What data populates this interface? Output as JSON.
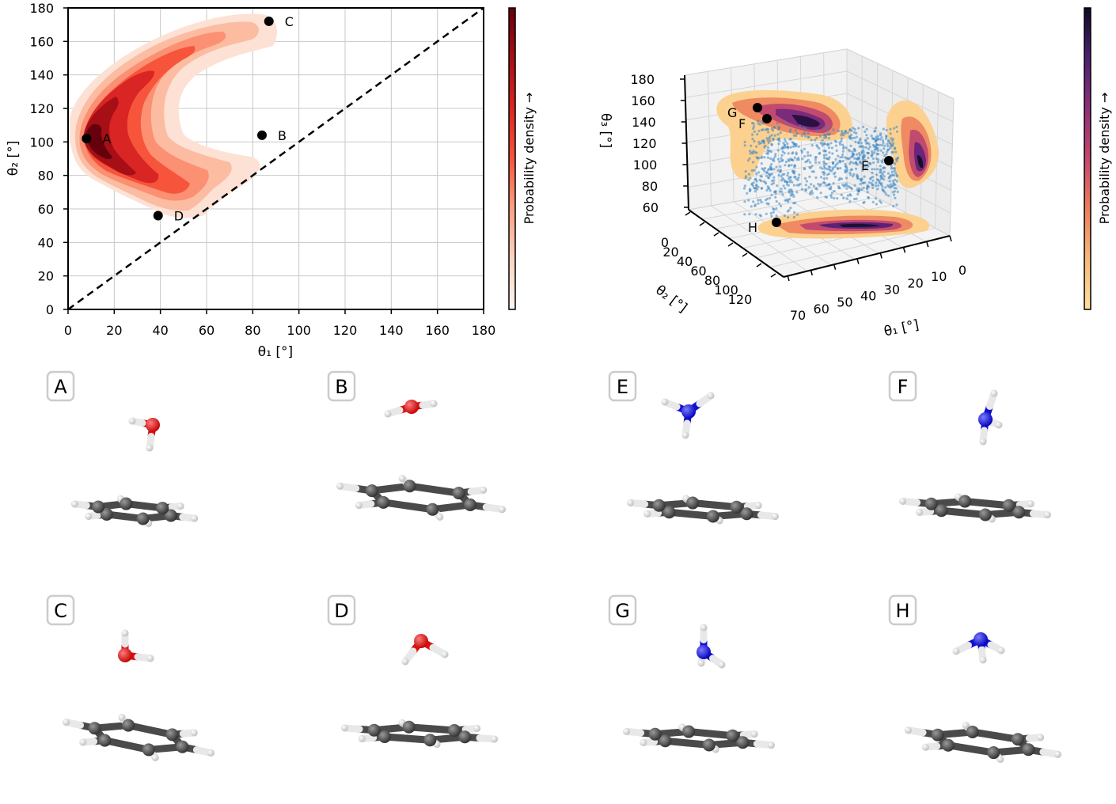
{
  "chart_data": [
    {
      "type": "contour-scatter",
      "title": "",
      "xlabel": "θ₁ [°]",
      "ylabel": "θ₂ [°]",
      "xlim": [
        0,
        180
      ],
      "ylim": [
        0,
        180
      ],
      "xticks": [
        0,
        20,
        40,
        60,
        80,
        100,
        120,
        140,
        160,
        180
      ],
      "yticks": [
        0,
        20,
        40,
        60,
        80,
        100,
        120,
        140,
        160,
        180
      ],
      "grid": true,
      "reference_line": {
        "style": "dashed",
        "from": [
          0,
          0
        ],
        "to": [
          180,
          180
        ]
      },
      "colorbar_label": "Probability density →",
      "colormap": "reds",
      "points": [
        {
          "label": "A",
          "x": 8,
          "y": 102
        },
        {
          "label": "B",
          "x": 84,
          "y": 104
        },
        {
          "label": "C",
          "x": 87,
          "y": 172
        },
        {
          "label": "D",
          "x": 39,
          "y": 56
        }
      ]
    },
    {
      "type": "scatter3d",
      "title": "",
      "xlabel": "θ₁ [°]",
      "ylabel": "θ₂ [°]",
      "zlabel": "θ₃ [°]",
      "xticks": [
        70,
        60,
        50,
        40,
        30,
        20,
        10,
        0
      ],
      "yticks": [
        0,
        20,
        40,
        60,
        80,
        100,
        120
      ],
      "zticks": [
        60,
        80,
        100,
        120,
        140,
        160,
        180
      ],
      "colorbar_label": "Probability density →",
      "colormap": "magma",
      "points": [
        {
          "label": "E"
        },
        {
          "label": "F"
        },
        {
          "label": "G"
        },
        {
          "label": "H"
        }
      ]
    }
  ],
  "molecules": {
    "top_row": [
      {
        "label": "A",
        "type": "water"
      },
      {
        "label": "B",
        "type": "water"
      },
      {
        "label": "E",
        "type": "ammonia"
      },
      {
        "label": "F",
        "type": "ammonia"
      }
    ],
    "bottom_row": [
      {
        "label": "C",
        "type": "water"
      },
      {
        "label": "D",
        "type": "water"
      },
      {
        "label": "G",
        "type": "ammonia"
      },
      {
        "label": "H",
        "type": "ammonia"
      }
    ]
  },
  "colors": {
    "oxygen": "#e01010",
    "nitrogen": "#1414d8",
    "carbon": "#4a4a4a",
    "hydrogen": "#f2f2f2",
    "scatter": "#3b87c4"
  }
}
